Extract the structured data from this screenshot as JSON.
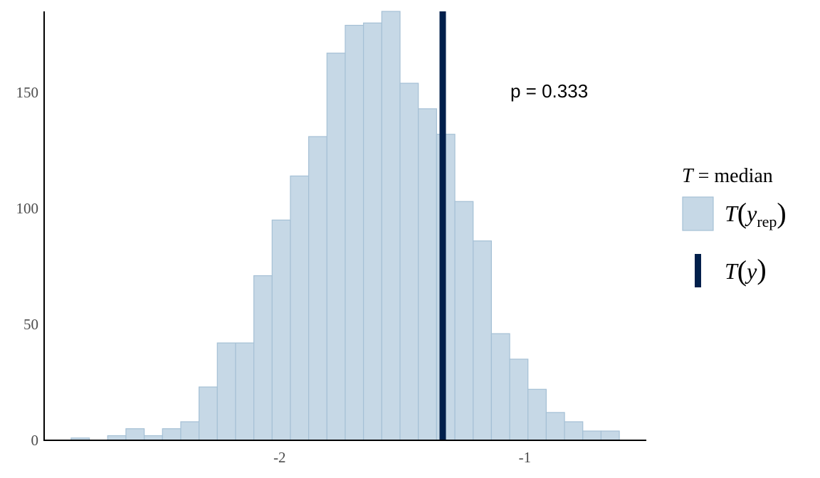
{
  "chart_data": {
    "type": "bar",
    "title": "",
    "xlabel": "",
    "ylabel": "",
    "xlim": [
      -2.96,
      -0.505
    ],
    "ylim": [
      0,
      185
    ],
    "x_ticks": [
      -2,
      -1
    ],
    "x_tick_labels": [
      "-2",
      "-1"
    ],
    "y_ticks": [
      0,
      50,
      100,
      150
    ],
    "y_tick_labels": [
      "0",
      "50",
      "100",
      "150"
    ],
    "bin_width": 0.0745,
    "bin_start": -2.85,
    "counts": [
      1,
      0,
      2,
      5,
      2,
      5,
      8,
      23,
      42,
      42,
      71,
      95,
      114,
      131,
      167,
      179,
      180,
      185,
      154,
      143,
      132,
      103,
      86,
      46,
      35,
      22,
      12,
      8,
      4,
      4
    ],
    "observed_statistic": -1.335,
    "grid": false,
    "annotation": "p = 0.333",
    "legend": {
      "position": "right",
      "title_symbol": "T",
      "title_rest": " = median",
      "items": [
        {
          "symbol": "T",
          "variable": "y",
          "subscript": "rep"
        },
        {
          "symbol": "T",
          "variable": "y",
          "subscript": ""
        }
      ]
    },
    "colors": {
      "bar_fill": "#c6d8e6",
      "bar_stroke": "#a5c0d5",
      "observed_line": "#011f4b",
      "axis": "#000000",
      "tick_label": "#4d4d4d"
    }
  }
}
